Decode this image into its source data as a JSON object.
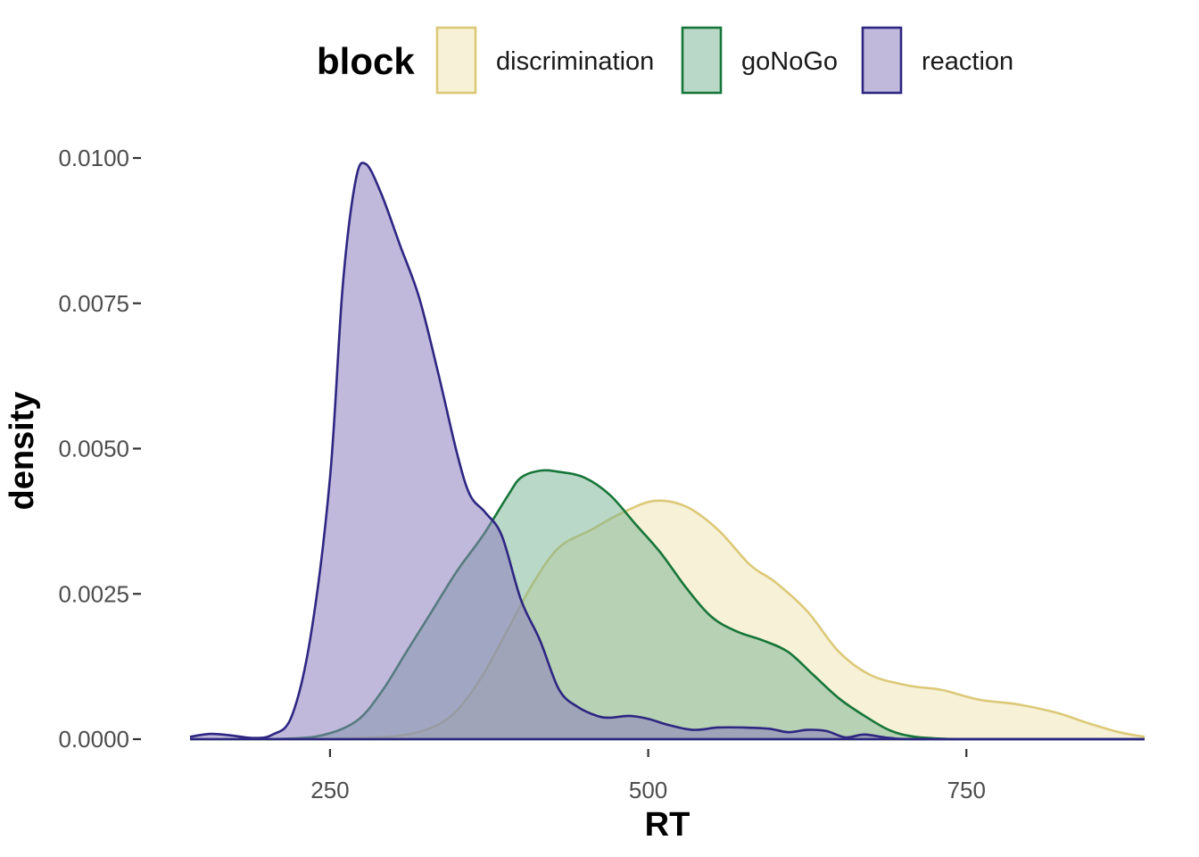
{
  "chart_data": {
    "type": "area",
    "subtype": "density",
    "title": "",
    "xlabel": "RT",
    "ylabel": "density",
    "xlim": [
      140,
      890
    ],
    "ylim": [
      0,
      0.01
    ],
    "x_ticks": [
      250,
      500,
      750
    ],
    "x_tick_labels": [
      "250",
      "500",
      "750"
    ],
    "y_ticks": [
      0,
      0.0025,
      0.005,
      0.0075,
      0.01
    ],
    "y_tick_labels": [
      "0.0000",
      "0.0025",
      "0.0050",
      "0.0075",
      "0.0100"
    ],
    "grid": false,
    "legend": {
      "title": "block",
      "position": "top",
      "entries": [
        "discrimination",
        "goNoGo",
        "reaction"
      ]
    },
    "series": [
      {
        "name": "discrimination",
        "fill": "#ecdfa6",
        "stroke": "#dcc978",
        "fill_opacity": 0.45,
        "points": [
          [
            240,
            0
          ],
          [
            300,
            5e-05
          ],
          [
            330,
            0.0002
          ],
          [
            350,
            0.0005
          ],
          [
            370,
            0.0011
          ],
          [
            390,
            0.0019
          ],
          [
            410,
            0.0027
          ],
          [
            430,
            0.0033
          ],
          [
            455,
            0.0036
          ],
          [
            480,
            0.0039
          ],
          [
            505,
            0.0041
          ],
          [
            530,
            0.004
          ],
          [
            555,
            0.0036
          ],
          [
            580,
            0.003
          ],
          [
            600,
            0.0027
          ],
          [
            625,
            0.0022
          ],
          [
            650,
            0.0015
          ],
          [
            675,
            0.0011
          ],
          [
            705,
            0.00092
          ],
          [
            730,
            0.00085
          ],
          [
            760,
            0.00068
          ],
          [
            790,
            0.0006
          ],
          [
            820,
            0.00046
          ],
          [
            845,
            0.00028
          ],
          [
            870,
            0.00012
          ],
          [
            890,
            4e-05
          ]
        ]
      },
      {
        "name": "goNoGo",
        "fill": "#76b28f",
        "stroke": "#177639",
        "fill_opacity": 0.5,
        "points": [
          [
            200,
            0
          ],
          [
            240,
            5e-05
          ],
          [
            270,
            0.0003
          ],
          [
            290,
            0.0008
          ],
          [
            310,
            0.0015
          ],
          [
            330,
            0.0022
          ],
          [
            350,
            0.0029
          ],
          [
            370,
            0.0035
          ],
          [
            390,
            0.0042
          ],
          [
            400,
            0.0045
          ],
          [
            415,
            0.00462
          ],
          [
            430,
            0.0046
          ],
          [
            450,
            0.0045
          ],
          [
            470,
            0.0042
          ],
          [
            490,
            0.0037
          ],
          [
            510,
            0.0032
          ],
          [
            530,
            0.0026
          ],
          [
            550,
            0.0021
          ],
          [
            570,
            0.00185
          ],
          [
            590,
            0.0017
          ],
          [
            610,
            0.0015
          ],
          [
            630,
            0.0011
          ],
          [
            650,
            0.0007
          ],
          [
            670,
            0.0004
          ],
          [
            690,
            0.00015
          ],
          [
            710,
            4e-05
          ],
          [
            740,
            0
          ]
        ]
      },
      {
        "name": "reaction",
        "fill": "#8c80bd",
        "stroke": "#2e2682",
        "fill_opacity": 0.55,
        "points": [
          [
            140,
            4e-05
          ],
          [
            155,
            9e-05
          ],
          [
            170,
            7e-05
          ],
          [
            190,
            2e-05
          ],
          [
            205,
            8e-05
          ],
          [
            220,
            0.0004
          ],
          [
            235,
            0.0018
          ],
          [
            250,
            0.0045
          ],
          [
            260,
            0.0078
          ],
          [
            270,
            0.0096
          ],
          [
            278,
            0.0099
          ],
          [
            290,
            0.0094
          ],
          [
            305,
            0.0085
          ],
          [
            320,
            0.0076
          ],
          [
            335,
            0.0063
          ],
          [
            350,
            0.0049
          ],
          [
            360,
            0.0042
          ],
          [
            372,
            0.0039
          ],
          [
            385,
            0.0035
          ],
          [
            400,
            0.0024
          ],
          [
            415,
            0.0017
          ],
          [
            430,
            0.00085
          ],
          [
            445,
            0.00055
          ],
          [
            460,
            0.0004
          ],
          [
            470,
            0.00037
          ],
          [
            485,
            0.0004
          ],
          [
            500,
            0.00035
          ],
          [
            515,
            0.00025
          ],
          [
            535,
            0.00016
          ],
          [
            555,
            0.0002
          ],
          [
            575,
            0.0002
          ],
          [
            595,
            0.00018
          ],
          [
            610,
            0.00012
          ],
          [
            625,
            0.00016
          ],
          [
            640,
            0.00014
          ],
          [
            655,
            3e-05
          ],
          [
            670,
            8e-05
          ],
          [
            690,
            2e-05
          ],
          [
            720,
            0
          ],
          [
            890,
            0
          ]
        ]
      }
    ]
  }
}
